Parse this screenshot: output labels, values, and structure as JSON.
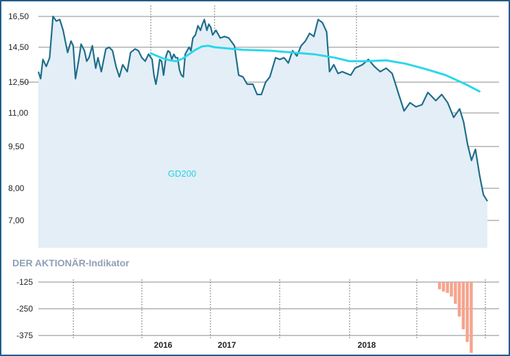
{
  "chart_data": [
    {
      "type": "area",
      "y_ticks": [
        "16,50",
        "14,50",
        "12,50",
        "11,00",
        "9,50",
        "8,00",
        "7,00"
      ],
      "x_year_labels": [
        "2016",
        "2017",
        "2018"
      ],
      "grid": true,
      "colors": {
        "price_line": "#1d6d8a",
        "area_fill": "#e3eef6",
        "gd200_line": "#29d7ea",
        "grid": "#8a8a8a"
      },
      "series": [
        {
          "name": "",
          "kind": "price",
          "points": [
            [
              2015.0,
              13.1
            ],
            [
              2015.02,
              12.7
            ],
            [
              2015.04,
              13.8
            ],
            [
              2015.07,
              13.4
            ],
            [
              2015.1,
              13.9
            ],
            [
              2015.13,
              16.5
            ],
            [
              2015.16,
              16.2
            ],
            [
              2015.19,
              16.3
            ],
            [
              2015.22,
              15.6
            ],
            [
              2015.26,
              14.2
            ],
            [
              2015.29,
              14.9
            ],
            [
              2015.31,
              14.6
            ],
            [
              2015.33,
              12.7
            ],
            [
              2015.36,
              13.8
            ],
            [
              2015.38,
              14.7
            ],
            [
              2015.41,
              14.3
            ],
            [
              2015.43,
              13.7
            ],
            [
              2015.45,
              13.9
            ],
            [
              2015.48,
              14.6
            ],
            [
              2015.51,
              13.3
            ],
            [
              2015.53,
              13.9
            ],
            [
              2015.56,
              13.1
            ],
            [
              2015.6,
              14.4
            ],
            [
              2015.63,
              14.5
            ],
            [
              2015.66,
              14.3
            ],
            [
              2015.69,
              13.4
            ],
            [
              2015.72,
              12.8
            ],
            [
              2015.75,
              13.5
            ],
            [
              2015.79,
              13.1
            ],
            [
              2015.82,
              14.2
            ],
            [
              2015.86,
              14.4
            ],
            [
              2015.89,
              14.3
            ],
            [
              2015.92,
              13.9
            ],
            [
              2015.95,
              13.7
            ],
            [
              2015.98,
              14.1
            ],
            [
              2016.02,
              13.8
            ],
            [
              2016.05,
              12.9
            ],
            [
              2016.08,
              12.4
            ],
            [
              2016.11,
              13.0
            ],
            [
              2016.14,
              13.8
            ],
            [
              2016.17,
              13.7
            ],
            [
              2016.2,
              12.9
            ],
            [
              2016.24,
              14.0
            ],
            [
              2016.27,
              14.3
            ],
            [
              2016.3,
              14.2
            ],
            [
              2016.33,
              13.8
            ],
            [
              2016.36,
              14.1
            ],
            [
              2016.39,
              13.9
            ],
            [
              2016.42,
              13.9
            ],
            [
              2016.45,
              13.2
            ],
            [
              2016.48,
              12.9
            ],
            [
              2016.51,
              12.8
            ],
            [
              2016.54,
              14.1
            ],
            [
              2016.57,
              14.3
            ],
            [
              2016.6,
              14.5
            ],
            [
              2016.63,
              14.3
            ],
            [
              2016.66,
              15.1
            ],
            [
              2016.7,
              15.3
            ],
            [
              2016.74,
              15.9
            ],
            [
              2016.78,
              15.6
            ],
            [
              2016.81,
              16.0
            ],
            [
              2016.84,
              16.3
            ],
            [
              2016.88,
              15.6
            ],
            [
              2016.91,
              16.0
            ],
            [
              2016.94,
              15.8
            ],
            [
              2016.97,
              15.3
            ],
            [
              2017.01,
              15.6
            ],
            [
              2017.04,
              15.1
            ],
            [
              2017.07,
              15.2
            ],
            [
              2017.1,
              15.1
            ],
            [
              2017.14,
              14.6
            ],
            [
              2017.17,
              12.9
            ],
            [
              2017.2,
              12.8
            ],
            [
              2017.23,
              12.4
            ],
            [
              2017.27,
              12.4
            ],
            [
              2017.3,
              11.9
            ],
            [
              2017.33,
              11.9
            ],
            [
              2017.36,
              12.5
            ],
            [
              2017.39,
              12.8
            ],
            [
              2017.43,
              13.9
            ],
            [
              2017.46,
              13.8
            ],
            [
              2017.49,
              13.9
            ],
            [
              2017.52,
              13.6
            ],
            [
              2017.55,
              14.3
            ],
            [
              2017.58,
              14.0
            ],
            [
              2017.61,
              14.6
            ],
            [
              2017.64,
              14.9
            ],
            [
              2017.67,
              15.4
            ],
            [
              2017.7,
              15.2
            ],
            [
              2017.73,
              16.3
            ],
            [
              2017.76,
              16.1
            ],
            [
              2017.79,
              15.5
            ],
            [
              2017.81,
              13.1
            ],
            [
              2017.84,
              13.5
            ],
            [
              2017.87,
              13.0
            ],
            [
              2017.9,
              13.1
            ],
            [
              2017.93,
              13.0
            ],
            [
              2017.96,
              12.9
            ],
            [
              2017.99,
              13.3
            ],
            [
              2018.03,
              13.5
            ],
            [
              2018.06,
              13.8
            ],
            [
              2018.09,
              13.4
            ],
            [
              2018.12,
              13.1
            ],
            [
              2018.15,
              13.3
            ],
            [
              2018.18,
              13.0
            ],
            [
              2018.21,
              12.0
            ],
            [
              2018.24,
              11.1
            ],
            [
              2018.27,
              11.5
            ],
            [
              2018.3,
              11.3
            ],
            [
              2018.33,
              11.4
            ],
            [
              2018.36,
              12.0
            ],
            [
              2018.4,
              11.6
            ],
            [
              2018.43,
              11.9
            ],
            [
              2018.46,
              11.5
            ],
            [
              2018.49,
              10.8
            ],
            [
              2018.52,
              11.2
            ],
            [
              2018.54,
              10.6
            ],
            [
              2018.56,
              9.6
            ],
            [
              2018.58,
              9.0
            ],
            [
              2018.6,
              9.4
            ],
            [
              2018.62,
              8.5
            ],
            [
              2018.64,
              7.8
            ],
            [
              2018.66,
              7.6
            ]
          ]
        },
        {
          "name": "GD200",
          "kind": "moving-average",
          "points": [
            [
              2016.0,
              14.15
            ],
            [
              2016.1,
              14.0
            ],
            [
              2016.2,
              13.85
            ],
            [
              2016.3,
              13.75
            ],
            [
              2016.4,
              13.7
            ],
            [
              2016.5,
              13.85
            ],
            [
              2016.6,
              14.1
            ],
            [
              2016.7,
              14.35
            ],
            [
              2016.8,
              14.55
            ],
            [
              2016.9,
              14.6
            ],
            [
              2017.0,
              14.5
            ],
            [
              2017.2,
              14.35
            ],
            [
              2017.4,
              14.3
            ],
            [
              2017.55,
              14.2
            ],
            [
              2017.7,
              14.1
            ],
            [
              2017.85,
              13.9
            ],
            [
              2017.95,
              13.7
            ],
            [
              2018.05,
              13.7
            ],
            [
              2018.15,
              13.75
            ],
            [
              2018.25,
              13.55
            ],
            [
              2018.35,
              13.25
            ],
            [
              2018.45,
              12.9
            ],
            [
              2018.55,
              12.4
            ],
            [
              2018.62,
              12.05
            ]
          ]
        }
      ],
      "annotations": [
        "GD200"
      ]
    },
    {
      "type": "bar",
      "title": "DER AKTIONÄR-Indikator",
      "y_ticks": [
        "-125",
        "-250",
        "-375"
      ],
      "x_range": [
        2015.0,
        2018.66
      ],
      "bar_color": "#f6a48e",
      "values": [
        [
          2018.48,
          -40
        ],
        [
          2018.5,
          -52
        ],
        [
          2018.52,
          -60
        ],
        [
          2018.54,
          -80
        ],
        [
          2018.56,
          -120
        ],
        [
          2018.58,
          -190
        ],
        [
          2018.6,
          -260
        ],
        [
          2018.62,
          -330
        ],
        [
          2018.64,
          -390
        ]
      ]
    }
  ]
}
